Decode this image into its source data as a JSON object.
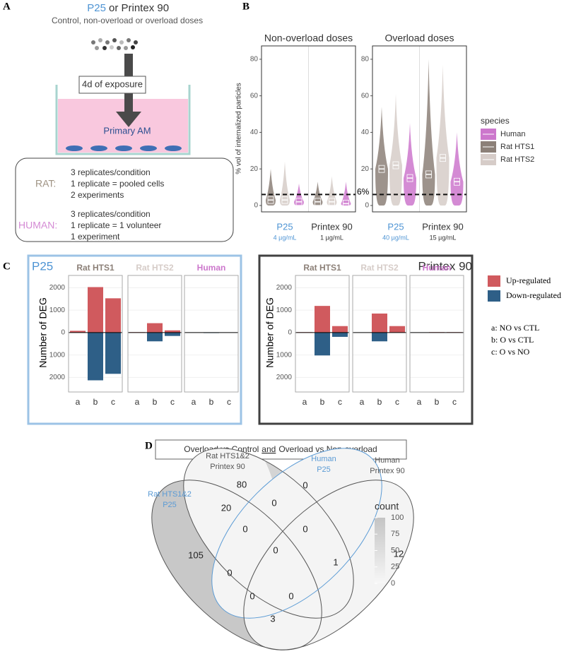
{
  "panel_a": {
    "label": "A",
    "title_highlight": "P25",
    "title_rest": "or Printex 90",
    "subtitle": "Control, non-overload or overload doses",
    "exposure": "4d of exposure",
    "cells": "Primary AM",
    "rat": {
      "label": "RAT:",
      "lines": [
        "3 replicates/condition",
        "1 replicate = pooled cells",
        "2 experiments"
      ]
    },
    "human": {
      "label": "HUMAN:",
      "lines": [
        "3 replicates/condition",
        "1 replicate = 1 volunteer",
        "1 experiment"
      ]
    }
  },
  "panel_b": {
    "label": "B",
    "y_label": "% vol of internalized particles",
    "ylim": [
      -3.5,
      87.3
    ],
    "yticks": [
      0,
      20,
      40,
      60,
      80
    ],
    "threshold": 6,
    "threshold_label": "6%",
    "legend": {
      "title": "species",
      "items": [
        {
          "name": "Human",
          "color": "#cc77cc"
        },
        {
          "name": "Rat HTS1",
          "color": "#8c8078"
        },
        {
          "name": "Rat HTS2",
          "color": "#d6ccc8"
        }
      ]
    },
    "plots": [
      {
        "title": "Non-overload doses",
        "groups": [
          {
            "name": "P25",
            "dose": "4 µg/mL",
            "color": "#4e94d4",
            "medians": [
              2,
              3,
              3
            ],
            "max": [
              12,
              20,
              24
            ]
          },
          {
            "name": "Printex 90",
            "dose": "1 µg/mL",
            "color": "#333333",
            "medians": [
              1,
              2,
              2
            ],
            "max": [
              13,
              13,
              16
            ]
          }
        ]
      },
      {
        "title": "Overload doses",
        "groups": [
          {
            "name": "P25",
            "dose": "40 µg/mL",
            "color": "#4e94d4",
            "medians": [
              15,
              20,
              22
            ],
            "max": [
              45,
              54,
              61
            ]
          },
          {
            "name": "Printex 90",
            "dose": "15 µg/mL",
            "color": "#333333",
            "medians": [
              13,
              17,
              26
            ],
            "max": [
              40,
              80,
              77
            ]
          }
        ]
      }
    ]
  },
  "panel_c": {
    "label": "C",
    "y_label": "Number of DEG",
    "ylim": [
      -2650,
      2550
    ],
    "yticks": [
      {
        "value": -2000,
        "label": "2000"
      },
      {
        "value": -1000,
        "label": "1000"
      },
      0,
      1000,
      2000
    ],
    "categories": [
      "a",
      "b",
      "c"
    ],
    "legend": [
      {
        "name": "Up-regulated",
        "color": "#d05a5e"
      },
      {
        "name": "Down-regulated",
        "color": "#2e5f87"
      }
    ],
    "notes": [
      "a: NO vs CTL",
      "b: O vs CTL",
      "c: O vs NO"
    ],
    "groups": [
      {
        "title": "P25",
        "title_color": "#4e94d4",
        "frame_color": "#9cc3e6",
        "facets": [
          {
            "name": "Rat HTS1",
            "color": "#8c8078",
            "up": [
              80,
              2030,
              1530
            ],
            "down": [
              0,
              -2130,
              -1840
            ]
          },
          {
            "name": "Rat HTS2",
            "color": "#d6ccc8",
            "up": [
              20,
              420,
              100
            ],
            "down": [
              0,
              -390,
              -150
            ]
          },
          {
            "name": "Human",
            "color": "#cc77cc",
            "up": [
              0,
              10,
              0
            ],
            "down": [
              0,
              -20,
              0
            ]
          }
        ]
      },
      {
        "title": "Printex 90",
        "title_color": "#333333",
        "frame_color": "#404040",
        "facets": [
          {
            "name": "Rat HTS1",
            "color": "#8c8078",
            "up": [
              20,
              1190,
              290
            ],
            "down": [
              0,
              -1020,
              -190
            ]
          },
          {
            "name": "Rat HTS2",
            "color": "#d6ccc8",
            "up": [
              10,
              850,
              290
            ],
            "down": [
              0,
              -390,
              0
            ]
          },
          {
            "name": "Human",
            "color": "#cc77cc",
            "up": [
              0,
              20,
              20
            ],
            "down": [
              0,
              0,
              0
            ]
          }
        ]
      }
    ]
  },
  "panel_d": {
    "label": "D",
    "title": {
      "before": "Overload vs Control",
      "underlined": "and",
      "after": "Overload vs Non-overload"
    },
    "sets": [
      {
        "lines": [
          "Rat HTS1&2",
          "P25"
        ],
        "color": "#5b9bd5"
      },
      {
        "lines": [
          "Rat HTS1&2",
          "Printex 90"
        ],
        "color": "#555555"
      },
      {
        "lines": [
          "Human",
          "P25"
        ],
        "color": "#5b9bd5"
      },
      {
        "lines": [
          "Human",
          "Printex 90"
        ],
        "color": "#555555"
      }
    ],
    "regions": [
      80,
      0,
      20,
      0,
      0,
      0,
      0,
      105,
      0,
      1,
      12,
      0,
      0,
      3
    ],
    "legend": {
      "title": "count",
      "ticks": [
        0,
        25,
        50,
        75,
        100
      ]
    }
  }
}
